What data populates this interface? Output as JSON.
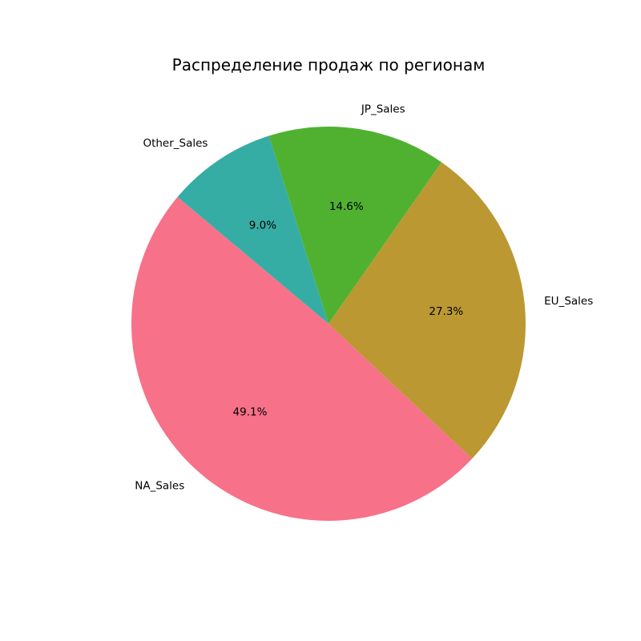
{
  "chart_data": {
    "type": "pie",
    "title": "Распределение продаж по регионам",
    "start_angle_deg": 140,
    "direction": "counterclockwise",
    "slices": [
      {
        "label": "NA_Sales",
        "value": 49.1,
        "pct_label": "49.1%",
        "color": "#f77189"
      },
      {
        "label": "EU_Sales",
        "value": 27.3,
        "pct_label": "27.3%",
        "color": "#bb9832"
      },
      {
        "label": "JP_Sales",
        "value": 14.6,
        "pct_label": "14.6%",
        "color": "#50b131"
      },
      {
        "label": "Other_Sales",
        "value": 9.0,
        "pct_label": "9.0%",
        "color": "#36ada4"
      }
    ]
  }
}
